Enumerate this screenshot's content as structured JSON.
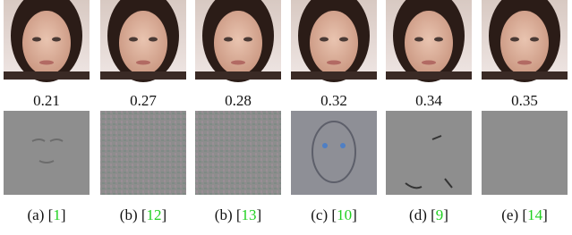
{
  "columns": [
    {
      "score": "0.21",
      "label": "(a)",
      "ref": "1"
    },
    {
      "score": "0.27",
      "label": "(b)",
      "ref": "12"
    },
    {
      "score": "0.28",
      "label": "(b)",
      "ref": "13"
    },
    {
      "score": "0.32",
      "label": "(c)",
      "ref": "10"
    },
    {
      "score": "0.34",
      "label": "(d)",
      "ref": "9"
    },
    {
      "score": "0.35",
      "label": "(e)",
      "ref": "14"
    }
  ],
  "ref_brackets": [
    "[",
    "]"
  ]
}
